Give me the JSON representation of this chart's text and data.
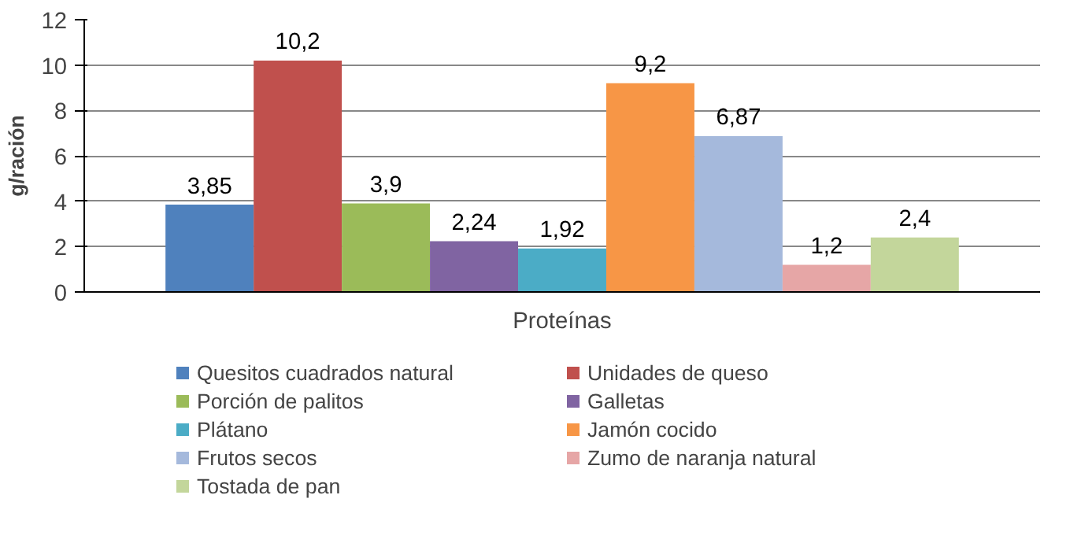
{
  "chart_data": {
    "type": "bar",
    "ylabel": "g/ración",
    "categories": [
      "Proteínas"
    ],
    "ylim": [
      0,
      12
    ],
    "yticks": [
      0,
      2,
      4,
      6,
      8,
      10,
      12
    ],
    "grid": "y",
    "legend": "bottom",
    "series": [
      {
        "name": "Quesitos cuadrados natural",
        "color": "#4f81bd",
        "values": [
          3.85
        ],
        "value_labels": [
          "3,85"
        ]
      },
      {
        "name": "Unidades de queso",
        "color": "#c0504d",
        "values": [
          10.2
        ],
        "value_labels": [
          "10,2"
        ]
      },
      {
        "name": "Porción de palitos",
        "color": "#9bbb59",
        "values": [
          3.9
        ],
        "value_labels": [
          "3,9"
        ]
      },
      {
        "name": "Galletas",
        "color": "#8064a2",
        "values": [
          2.24
        ],
        "value_labels": [
          "2,24"
        ]
      },
      {
        "name": "Plátano",
        "color": "#4bacc6",
        "values": [
          1.92
        ],
        "value_labels": [
          "1,92"
        ]
      },
      {
        "name": "Jamón cocido",
        "color": "#f79646",
        "values": [
          9.2
        ],
        "value_labels": [
          "9,2"
        ]
      },
      {
        "name": "Frutos secos",
        "color": "#a5b9dc",
        "values": [
          6.87
        ],
        "value_labels": [
          "6,87"
        ]
      },
      {
        "name": "Zumo de naranja natural",
        "color": "#e6a6a6",
        "values": [
          1.2
        ],
        "value_labels": [
          "1,2"
        ]
      },
      {
        "name": "Tostada de pan",
        "color": "#c3d69b",
        "values": [
          2.4
        ],
        "value_labels": [
          "2,4"
        ]
      }
    ]
  }
}
